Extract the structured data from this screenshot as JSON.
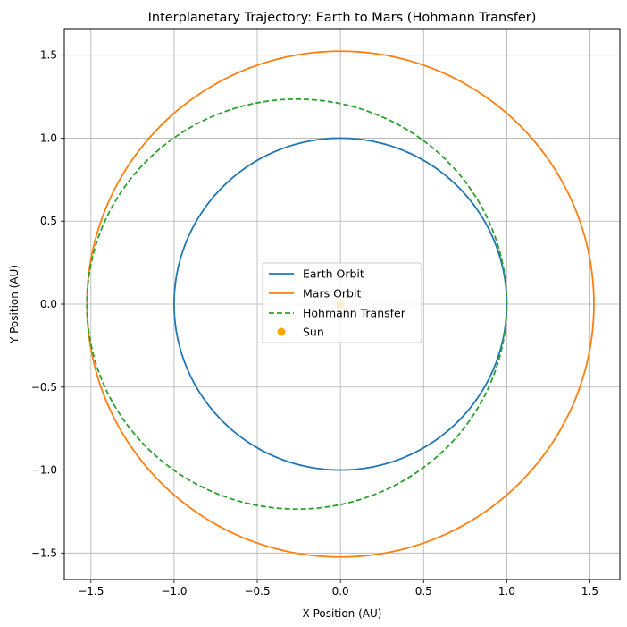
{
  "chart_data": {
    "type": "line",
    "title": "Interplanetary Trajectory: Earth to Mars (Hohmann Transfer)",
    "xlabel": "X Position (AU)",
    "ylabel": "Y Position (AU)",
    "xlim": [
      -1.66,
      1.68
    ],
    "ylim": [
      -1.66,
      1.66
    ],
    "xticks": [
      -1.5,
      -1.0,
      -0.5,
      0.0,
      0.5,
      1.0,
      1.5
    ],
    "yticks": [
      -1.5,
      -1.0,
      -0.5,
      0.0,
      0.5,
      1.0,
      1.5
    ],
    "xtick_labels": [
      "−1.5",
      "−1.0",
      "−0.5",
      "0.0",
      "0.5",
      "1.0",
      "1.5"
    ],
    "ytick_labels": [
      "−1.5",
      "−1.0",
      "−0.5",
      "0.0",
      "0.5",
      "1.0",
      "1.5"
    ],
    "grid": true,
    "legend_position": "center",
    "series": [
      {
        "name": "Earth Orbit",
        "kind": "circle",
        "center": [
          0,
          0
        ],
        "radius": 1.0,
        "color": "#1f77b4",
        "linestyle": "solid"
      },
      {
        "name": "Mars Orbit",
        "kind": "circle",
        "center": [
          0,
          0
        ],
        "radius": 1.524,
        "color": "#ff7f0e",
        "linestyle": "solid"
      },
      {
        "name": "Hohmann Transfer",
        "kind": "ellipse",
        "center": [
          -0.262,
          0
        ],
        "semi_major_x": 1.262,
        "semi_minor_y": 1.235,
        "color": "#2ca02c",
        "linestyle": "dashed"
      },
      {
        "name": "Sun",
        "kind": "point",
        "x": 0,
        "y": 0,
        "color": "#ffa500"
      }
    ]
  }
}
